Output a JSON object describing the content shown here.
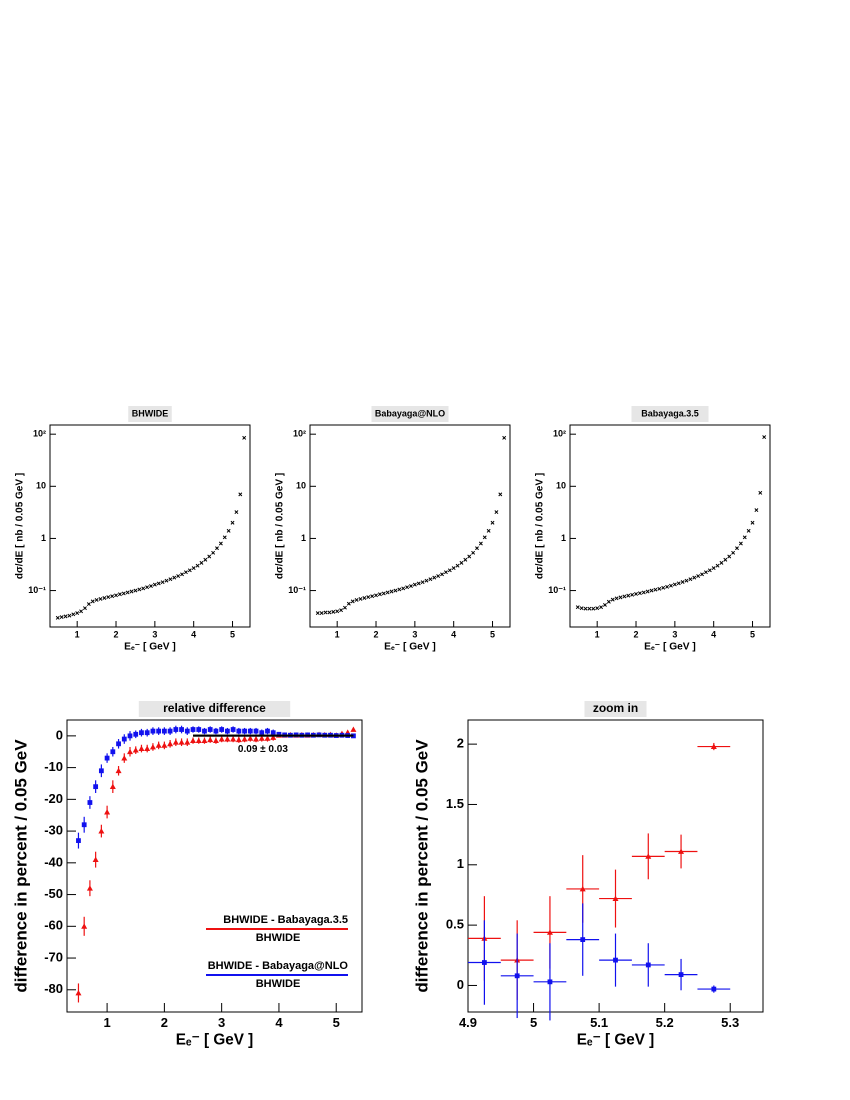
{
  "chart_data": [
    {
      "type": "scatter",
      "title": "BHWIDE",
      "xlabel": "Eₑ⁻ [ GeV ]",
      "ylabel": "dσ/dE [ nb / 0.05 GeV ]",
      "log_y": true,
      "color": "#000000",
      "marker": "cross",
      "xlim": [
        0.3,
        5.45
      ],
      "xticks": [
        1,
        2,
        3,
        4,
        5
      ],
      "ylim": [
        0.02,
        150
      ],
      "yticks": [
        {
          "value": 0.1,
          "label": "10⁻¹"
        },
        1,
        10,
        {
          "value": 100,
          "label": "10²"
        }
      ],
      "x": [
        0.5,
        0.6,
        0.7,
        0.8,
        0.9,
        1.0,
        1.1,
        1.2,
        1.3,
        1.4,
        1.5,
        1.6,
        1.7,
        1.8,
        1.9,
        2.0,
        2.1,
        2.2,
        2.3,
        2.4,
        2.5,
        2.6,
        2.7,
        2.8,
        2.9,
        3.0,
        3.1,
        3.2,
        3.3,
        3.4,
        3.5,
        3.6,
        3.7,
        3.8,
        3.9,
        4.0,
        4.1,
        4.2,
        4.3,
        4.4,
        4.5,
        4.6,
        4.7,
        4.8,
        4.9,
        5.0,
        5.1,
        5.2,
        5.3
      ],
      "values": [
        0.03,
        0.031,
        0.032,
        0.033,
        0.035,
        0.037,
        0.04,
        0.046,
        0.055,
        0.062,
        0.066,
        0.069,
        0.072,
        0.075,
        0.078,
        0.081,
        0.085,
        0.088,
        0.092,
        0.096,
        0.1,
        0.105,
        0.11,
        0.116,
        0.122,
        0.13,
        0.137,
        0.145,
        0.155,
        0.165,
        0.177,
        0.19,
        0.205,
        0.225,
        0.245,
        0.27,
        0.3,
        0.34,
        0.39,
        0.45,
        0.53,
        0.65,
        0.8,
        1.05,
        1.4,
        2.0,
        3.2,
        7.0,
        85
      ]
    },
    {
      "type": "scatter",
      "title": "Babayaga@NLO",
      "xlabel": "Eₑ⁻ [ GeV ]",
      "ylabel": "dσ/dE [ nb / 0.05 GeV ]",
      "log_y": true,
      "color": "#000000",
      "marker": "cross",
      "xlim": [
        0.3,
        5.45
      ],
      "xticks": [
        1,
        2,
        3,
        4,
        5
      ],
      "ylim": [
        0.02,
        150
      ],
      "yticks": [
        {
          "value": 0.1,
          "label": "10⁻¹"
        },
        1,
        10,
        {
          "value": 100,
          "label": "10²"
        }
      ],
      "x": [
        0.5,
        0.6,
        0.7,
        0.8,
        0.9,
        1.0,
        1.1,
        1.2,
        1.3,
        1.4,
        1.5,
        1.6,
        1.7,
        1.8,
        1.9,
        2.0,
        2.1,
        2.2,
        2.3,
        2.4,
        2.5,
        2.6,
        2.7,
        2.8,
        2.9,
        3.0,
        3.1,
        3.2,
        3.3,
        3.4,
        3.5,
        3.6,
        3.7,
        3.8,
        3.9,
        4.0,
        4.1,
        4.2,
        4.3,
        4.4,
        4.5,
        4.6,
        4.7,
        4.8,
        4.9,
        5.0,
        5.1,
        5.2,
        5.3
      ],
      "values": [
        0.037,
        0.037,
        0.038,
        0.038,
        0.039,
        0.04,
        0.042,
        0.047,
        0.056,
        0.062,
        0.066,
        0.069,
        0.072,
        0.075,
        0.078,
        0.081,
        0.085,
        0.088,
        0.092,
        0.096,
        0.1,
        0.105,
        0.11,
        0.116,
        0.122,
        0.13,
        0.137,
        0.145,
        0.155,
        0.165,
        0.177,
        0.19,
        0.205,
        0.225,
        0.245,
        0.27,
        0.3,
        0.34,
        0.39,
        0.45,
        0.53,
        0.65,
        0.8,
        1.05,
        1.4,
        2.0,
        3.2,
        7.0,
        85
      ]
    },
    {
      "type": "scatter",
      "title": "Babayaga.3.5",
      "xlabel": "Eₑ⁻ [ GeV ]",
      "ylabel": "dσ/dE [ nb / 0.05 GeV ]",
      "log_y": true,
      "color": "#000000",
      "marker": "cross",
      "xlim": [
        0.3,
        5.45
      ],
      "xticks": [
        1,
        2,
        3,
        4,
        5
      ],
      "ylim": [
        0.02,
        150
      ],
      "yticks": [
        {
          "value": 0.1,
          "label": "10⁻¹"
        },
        1,
        10,
        {
          "value": 100,
          "label": "10²"
        }
      ],
      "x": [
        0.5,
        0.6,
        0.7,
        0.8,
        0.9,
        1.0,
        1.1,
        1.2,
        1.3,
        1.4,
        1.5,
        1.6,
        1.7,
        1.8,
        1.9,
        2.0,
        2.1,
        2.2,
        2.3,
        2.4,
        2.5,
        2.6,
        2.7,
        2.8,
        2.9,
        3.0,
        3.1,
        3.2,
        3.3,
        3.4,
        3.5,
        3.6,
        3.7,
        3.8,
        3.9,
        4.0,
        4.1,
        4.2,
        4.3,
        4.4,
        4.5,
        4.6,
        4.7,
        4.8,
        4.9,
        5.0,
        5.1,
        5.2,
        5.3
      ],
      "values": [
        0.048,
        0.046,
        0.045,
        0.045,
        0.045,
        0.046,
        0.048,
        0.053,
        0.061,
        0.067,
        0.071,
        0.074,
        0.077,
        0.08,
        0.083,
        0.086,
        0.089,
        0.092,
        0.096,
        0.1,
        0.104,
        0.108,
        0.113,
        0.118,
        0.124,
        0.131,
        0.138,
        0.146,
        0.155,
        0.165,
        0.177,
        0.19,
        0.205,
        0.225,
        0.245,
        0.27,
        0.3,
        0.34,
        0.39,
        0.45,
        0.53,
        0.65,
        0.8,
        1.05,
        1.4,
        2.0,
        3.5,
        7.5,
        88
      ]
    },
    {
      "type": "errorbar",
      "title": "relative difference",
      "xlabel": "Eₑ⁻ [ GeV ]",
      "ylabel": "difference in percent / 0.05 GeV",
      "legend": "lower right",
      "xlim": [
        0.3,
        5.45
      ],
      "xticks": [
        1,
        2,
        3,
        4,
        5
      ],
      "ylim": [
        -87,
        5
      ],
      "yticks": [
        -80,
        -70,
        -60,
        -50,
        -40,
        -30,
        -20,
        -10,
        0
      ],
      "x": [
        0.5,
        0.6,
        0.7,
        0.8,
        0.9,
        1.0,
        1.1,
        1.2,
        1.3,
        1.4,
        1.5,
        1.6,
        1.7,
        1.8,
        1.9,
        2.0,
        2.1,
        2.2,
        2.3,
        2.4,
        2.5,
        2.6,
        2.7,
        2.8,
        2.9,
        3.0,
        3.1,
        3.2,
        3.3,
        3.4,
        3.5,
        3.6,
        3.7,
        3.8,
        3.9,
        4.0,
        4.1,
        4.2,
        4.3,
        4.4,
        4.5,
        4.6,
        4.7,
        4.8,
        4.9,
        5.0,
        5.1,
        5.2,
        5.3
      ],
      "series": [
        {
          "name": "BHWIDE - Babayaga.3.5",
          "denominator": "BHWIDE",
          "color": "#ee1111",
          "marker": "triangle",
          "values": [
            -81,
            -60,
            -48,
            -39,
            -30,
            -24,
            -16,
            -11,
            -7,
            -5,
            -4.5,
            -4,
            -4,
            -3.5,
            -3,
            -3,
            -2.5,
            -2,
            -2,
            -2,
            -1.5,
            -1.5,
            -1.5,
            -1.2,
            -1.5,
            -1,
            -1,
            -1,
            -1.2,
            -1,
            -0.8,
            -1,
            -0.8,
            -0.8,
            -0.5,
            0.2,
            0.2,
            0.3,
            0.2,
            0.3,
            0.2,
            0.3,
            0.4,
            0.3,
            0.4,
            0.2,
            0.7,
            1.1,
            2.0
          ],
          "errors": [
            3,
            3,
            2.5,
            2.5,
            2,
            2,
            2,
            1.5,
            1.5,
            1.5,
            1.2,
            1.2,
            1.2,
            1.2,
            1.2,
            1.2,
            1.2,
            1.2,
            1.2,
            1.2,
            1,
            1,
            1,
            1,
            1,
            1,
            1,
            1,
            1,
            1,
            1,
            1,
            1,
            1,
            1,
            0.5,
            0.5,
            0.5,
            0.5,
            0.5,
            0.5,
            0.5,
            0.5,
            0.5,
            0.5,
            0.4,
            0.4,
            0.3,
            0.1
          ]
        },
        {
          "name": "BHWIDE - Babayaga@NLO",
          "denominator": "BHWIDE",
          "color": "#1111ee",
          "marker": "square",
          "values": [
            -33,
            -28,
            -21,
            -16,
            -11,
            -7,
            -5,
            -2.5,
            -1,
            0,
            0.5,
            1,
            1,
            1.5,
            1.5,
            1.5,
            1.5,
            2,
            2,
            1.5,
            2,
            2,
            1.5,
            2,
            1.5,
            2,
            1.5,
            2,
            1.5,
            1.5,
            1.5,
            1.5,
            1,
            1.5,
            1,
            0.5,
            0.3,
            0.2,
            0.3,
            0.2,
            0.3,
            0.2,
            0.3,
            0.2,
            0.2,
            0.1,
            0.2,
            0.1,
            0
          ],
          "errors": [
            2.5,
            2.5,
            2,
            2,
            2,
            1.5,
            1.5,
            1.5,
            1.5,
            1.5,
            1.2,
            1.2,
            1.2,
            1.2,
            1.2,
            1.2,
            1.2,
            1.2,
            1.2,
            1.2,
            1,
            1,
            1,
            1,
            1,
            1,
            1,
            1,
            1,
            1,
            1,
            1,
            1,
            1,
            1,
            0.5,
            0.5,
            0.5,
            0.5,
            0.5,
            0.5,
            0.5,
            0.5,
            0.5,
            0.5,
            0.4,
            0.4,
            0.3,
            0.1
          ]
        }
      ],
      "fit": {
        "value": 0.09,
        "error": 0.03,
        "label": "0.09 ± 0.03",
        "x": [
          2.5,
          5.3
        ]
      }
    },
    {
      "type": "errorbar",
      "title": "zoom in",
      "xlabel": "Eₑ⁻ [ GeV ]",
      "ylabel": "difference in percent / 0.05 GeV",
      "xlim": [
        4.9,
        5.35
      ],
      "xticks": [
        4.9,
        5,
        5.1,
        5.2,
        5.3
      ],
      "ylim": [
        -0.22,
        2.2
      ],
      "yticks": [
        0,
        0.5,
        1,
        1.5,
        2
      ],
      "x": [
        4.925,
        4.975,
        5.025,
        5.075,
        5.125,
        5.175,
        5.225,
        5.275
      ],
      "xerr": 0.025,
      "series": [
        {
          "color": "#ee1111",
          "marker": "triangle",
          "values": [
            0.39,
            0.21,
            0.44,
            0.8,
            0.72,
            1.07,
            1.11,
            1.98
          ],
          "errors": [
            0.35,
            0.33,
            0.3,
            0.28,
            0.24,
            0.19,
            0.14,
            0.03
          ]
        },
        {
          "color": "#1111ee",
          "marker": "square",
          "values": [
            0.19,
            0.08,
            0.03,
            0.38,
            0.21,
            0.17,
            0.09,
            -0.03
          ],
          "errors": [
            0.35,
            0.35,
            0.32,
            0.3,
            0.22,
            0.18,
            0.13,
            0.03
          ]
        }
      ]
    }
  ]
}
